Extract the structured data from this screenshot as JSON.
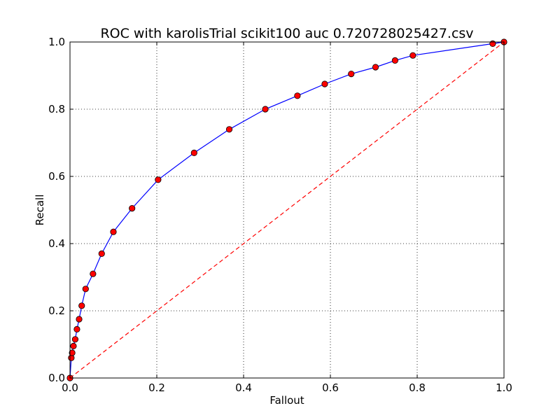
{
  "chart_data": {
    "type": "line",
    "title": "ROC with karolisTrial scikit100 auc 0.720728025427.csv",
    "xlabel": "Fallout",
    "ylabel": "Recall",
    "xlim": [
      0.0,
      1.0
    ],
    "ylim": [
      0.0,
      1.0
    ],
    "xticks": [
      "0.0",
      "0.2",
      "0.4",
      "0.6",
      "0.8",
      "1.0"
    ],
    "yticks": [
      "0.0",
      "0.2",
      "0.4",
      "0.6",
      "0.8",
      "1.0"
    ],
    "grid": true,
    "series": [
      {
        "line_color": "#0000ff",
        "marker_color": "#ff0000",
        "marker": "circle",
        "x": [
          0.0,
          0.003,
          0.005,
          0.008,
          0.012,
          0.016,
          0.021,
          0.027,
          0.036,
          0.053,
          0.073,
          0.1,
          0.143,
          0.203,
          0.286,
          0.367,
          0.45,
          0.524,
          0.587,
          0.648,
          0.704,
          0.749,
          0.79,
          0.974,
          1.0
        ],
        "y": [
          0.0,
          0.06,
          0.075,
          0.095,
          0.115,
          0.145,
          0.175,
          0.215,
          0.265,
          0.31,
          0.37,
          0.435,
          0.505,
          0.59,
          0.67,
          0.74,
          0.8,
          0.84,
          0.875,
          0.905,
          0.925,
          0.945,
          0.96,
          0.995,
          1.0
        ]
      },
      {
        "line_color": "#ff0000",
        "line_style": "dashed",
        "x": [
          0.0,
          1.0
        ],
        "y": [
          0.0,
          1.0
        ]
      }
    ]
  }
}
